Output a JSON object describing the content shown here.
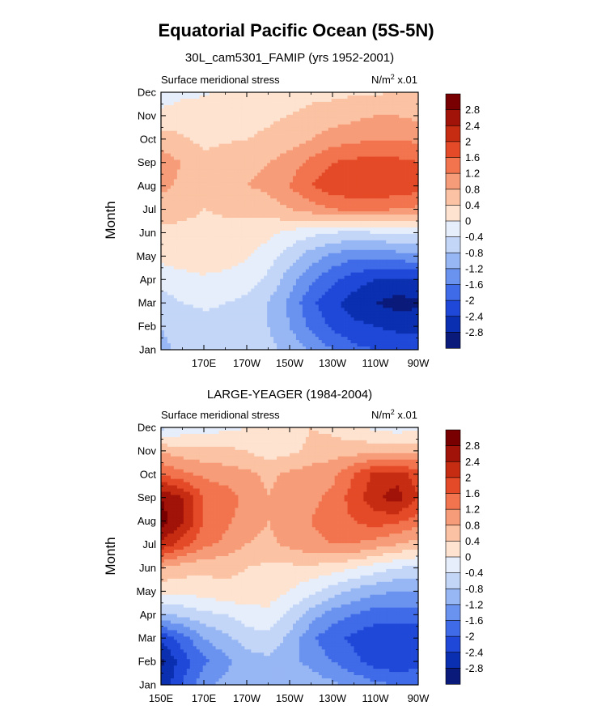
{
  "figure": {
    "title": "Equatorial Pacific Ocean (5S-5N)"
  },
  "chart_data": [
    {
      "type": "heatmap",
      "panel_title": "30L_cam5301_FAMIP (yrs 1952-2001)",
      "left_label": "Surface meridional stress",
      "units_text": "N/m",
      "units_exp": "2",
      "units_suffix": " x.01",
      "ylabel": "Month",
      "xlabel": "",
      "x_ticks": [
        "170E",
        "170W",
        "150W",
        "130W",
        "110W",
        "90W"
      ],
      "x_tick_values": [
        170,
        190,
        210,
        230,
        250,
        270
      ],
      "y_ticks": [
        "Jan",
        "Feb",
        "Mar",
        "Apr",
        "May",
        "Jun",
        "Jul",
        "Aug",
        "Sep",
        "Oct",
        "Nov",
        "Dec"
      ],
      "xlim": [
        150,
        270
      ],
      "ylim": [
        1,
        12
      ],
      "levels": [
        -2.8,
        -2.4,
        -2,
        -1.6,
        -1.2,
        -0.8,
        -0.4,
        0,
        0.4,
        0.8,
        1.2,
        1.6,
        2,
        2.4,
        2.8
      ],
      "colorbar_labels": [
        "2.8",
        "2.4",
        "2",
        "1.6",
        "1.2",
        "0.8",
        "0.4",
        "0",
        "-0.4",
        "-0.8",
        "-1.2",
        "-1.6",
        "-2",
        "-2.4",
        "-2.8"
      ],
      "colors": [
        "#0a1a7a",
        "#0a2fb0",
        "#1f48d8",
        "#3f6ae8",
        "#6a92ef",
        "#97b6f4",
        "#c3d6f8",
        "#e6eefb",
        "#fde3d0",
        "#fbc2a3",
        "#f79c78",
        "#f2744f",
        "#e44a27",
        "#c62c12",
        "#a11208",
        "#790000"
      ],
      "x": [
        150,
        160,
        170,
        180,
        190,
        200,
        210,
        220,
        230,
        240,
        250,
        260,
        270
      ],
      "y": [
        1,
        2,
        3,
        4,
        5,
        6,
        7,
        8,
        9,
        10,
        11,
        12
      ],
      "z": [
        [
          -0.9,
          -0.7,
          -0.6,
          -0.6,
          -0.6,
          -0.7,
          -0.9,
          -1.3,
          -1.6,
          -1.9,
          -2.0,
          -2.1,
          -2.2
        ],
        [
          -0.8,
          -0.6,
          -0.5,
          -0.5,
          -0.6,
          -0.8,
          -1.2,
          -1.7,
          -2.1,
          -2.3,
          -2.4,
          -2.5,
          -2.5
        ],
        [
          -0.6,
          -0.4,
          -0.35,
          -0.4,
          -0.5,
          -0.8,
          -1.3,
          -1.9,
          -2.3,
          -2.6,
          -2.8,
          -2.95,
          -2.9
        ],
        [
          -0.2,
          -0.1,
          -0.05,
          -0.1,
          -0.2,
          -0.5,
          -1.0,
          -1.5,
          -1.9,
          -2.2,
          -2.4,
          -2.5,
          -2.4
        ],
        [
          0.1,
          0.15,
          0.2,
          0.15,
          0.05,
          -0.2,
          -0.6,
          -1.0,
          -1.3,
          -1.5,
          -1.5,
          -1.4,
          -1.3
        ],
        [
          0.3,
          0.3,
          0.3,
          0.3,
          0.2,
          0.1,
          -0.1,
          -0.3,
          -0.4,
          -0.5,
          -0.4,
          -0.35,
          -0.3
        ],
        [
          0.6,
          0.5,
          0.4,
          0.45,
          0.5,
          0.6,
          0.8,
          1.0,
          1.2,
          1.3,
          1.3,
          1.2,
          1.1
        ],
        [
          0.9,
          0.7,
          0.5,
          0.7,
          0.8,
          0.9,
          1.2,
          1.6,
          1.85,
          1.95,
          2.0,
          1.9,
          1.8
        ],
        [
          1.0,
          0.8,
          0.5,
          0.6,
          0.7,
          0.8,
          1.0,
          1.3,
          1.6,
          1.7,
          1.75,
          1.7,
          1.6
        ],
        [
          0.6,
          0.45,
          0.3,
          0.35,
          0.4,
          0.45,
          0.6,
          0.8,
          1.0,
          1.1,
          1.2,
          1.2,
          1.1
        ],
        [
          0.1,
          0.2,
          0.25,
          0.3,
          0.3,
          0.35,
          0.4,
          0.5,
          0.6,
          0.7,
          0.8,
          0.8,
          0.7
        ],
        [
          -0.2,
          -0.1,
          -0.05,
          0.05,
          0.1,
          0.2,
          0.25,
          0.3,
          0.3,
          0.35,
          0.35,
          0.4,
          0.4
        ]
      ]
    },
    {
      "type": "heatmap",
      "panel_title": "LARGE-YEAGER (1984-2004)",
      "left_label": "Surface meridional stress",
      "units_text": "N/m",
      "units_exp": "2",
      "units_suffix": " x.01",
      "ylabel": "Month",
      "xlabel": "",
      "x_ticks": [
        "150E",
        "170E",
        "170W",
        "150W",
        "130W",
        "110W",
        "90W"
      ],
      "x_tick_values": [
        150,
        170,
        190,
        210,
        230,
        250,
        270
      ],
      "y_ticks": [
        "Jan",
        "Feb",
        "Mar",
        "Apr",
        "May",
        "Jun",
        "Jul",
        "Aug",
        "Sep",
        "Oct",
        "Nov",
        "Dec"
      ],
      "xlim": [
        150,
        270
      ],
      "ylim": [
        1,
        12
      ],
      "levels": [
        -2.8,
        -2.4,
        -2,
        -1.6,
        -1.2,
        -0.8,
        -0.4,
        0,
        0.4,
        0.8,
        1.2,
        1.6,
        2,
        2.4,
        2.8
      ],
      "colorbar_labels": [
        "2.8",
        "2.4",
        "2",
        "1.6",
        "1.2",
        "0.8",
        "0.4",
        "0",
        "-0.4",
        "-0.8",
        "-1.2",
        "-1.6",
        "-2",
        "-2.4",
        "-2.8"
      ],
      "colors": [
        "#0a1a7a",
        "#0a2fb0",
        "#1f48d8",
        "#3f6ae8",
        "#6a92ef",
        "#97b6f4",
        "#c3d6f8",
        "#e6eefb",
        "#fde3d0",
        "#fbc2a3",
        "#f79c78",
        "#f2744f",
        "#e44a27",
        "#c62c12",
        "#a11208",
        "#790000"
      ],
      "x": [
        150,
        160,
        170,
        180,
        190,
        200,
        210,
        220,
        230,
        240,
        250,
        260,
        270
      ],
      "y": [
        1,
        2,
        3,
        4,
        5,
        6,
        7,
        8,
        9,
        10,
        11,
        12
      ],
      "z": [
        [
          -2.7,
          -2.0,
          -1.3,
          -1.1,
          -0.9,
          -0.8,
          -0.9,
          -1.0,
          -1.1,
          -1.3,
          -1.5,
          -1.6,
          -1.6
        ],
        [
          -2.9,
          -2.2,
          -1.7,
          -1.3,
          -1.0,
          -0.9,
          -1.1,
          -1.3,
          -1.6,
          -1.9,
          -2.2,
          -2.3,
          -2.2
        ],
        [
          -2.3,
          -1.8,
          -1.2,
          -0.9,
          -0.6,
          -0.5,
          -0.9,
          -1.5,
          -1.9,
          -2.1,
          -2.3,
          -2.4,
          -2.3
        ],
        [
          -0.9,
          -0.7,
          -0.5,
          -0.4,
          -0.2,
          -0.1,
          -0.5,
          -1.0,
          -1.4,
          -1.6,
          -1.8,
          -1.8,
          -1.8
        ],
        [
          0.1,
          0.1,
          0.2,
          0.3,
          0.3,
          0.2,
          0.0,
          -0.3,
          -0.6,
          -0.9,
          -1.1,
          -1.2,
          -1.2
        ],
        [
          0.8,
          0.6,
          0.5,
          0.5,
          0.4,
          0.3,
          0.3,
          0.3,
          0.2,
          0.0,
          -0.2,
          -0.4,
          -0.5
        ],
        [
          2.3,
          1.8,
          1.3,
          1.1,
          0.8,
          0.7,
          0.9,
          1.1,
          1.2,
          1.2,
          1.0,
          0.8,
          0.6
        ],
        [
          3.0,
          2.5,
          1.6,
          1.3,
          1.0,
          0.8,
          1.0,
          1.2,
          1.4,
          1.6,
          1.8,
          1.7,
          1.4
        ],
        [
          2.8,
          2.4,
          1.6,
          1.4,
          1.1,
          0.8,
          1.0,
          1.1,
          1.3,
          1.8,
          2.3,
          2.6,
          2.0
        ],
        [
          1.6,
          1.3,
          1.1,
          1.0,
          0.9,
          0.7,
          0.9,
          1.0,
          1.1,
          1.6,
          2.1,
          2.2,
          1.8
        ],
        [
          0.7,
          0.6,
          0.5,
          0.5,
          0.4,
          0.2,
          0.3,
          0.5,
          0.6,
          0.6,
          0.7,
          0.7,
          0.7
        ],
        [
          -0.5,
          -0.3,
          -0.2,
          -0.1,
          0.0,
          0.1,
          0.2,
          0.4,
          0.3,
          0.1,
          -0.1,
          -0.2,
          -0.1
        ]
      ]
    }
  ]
}
